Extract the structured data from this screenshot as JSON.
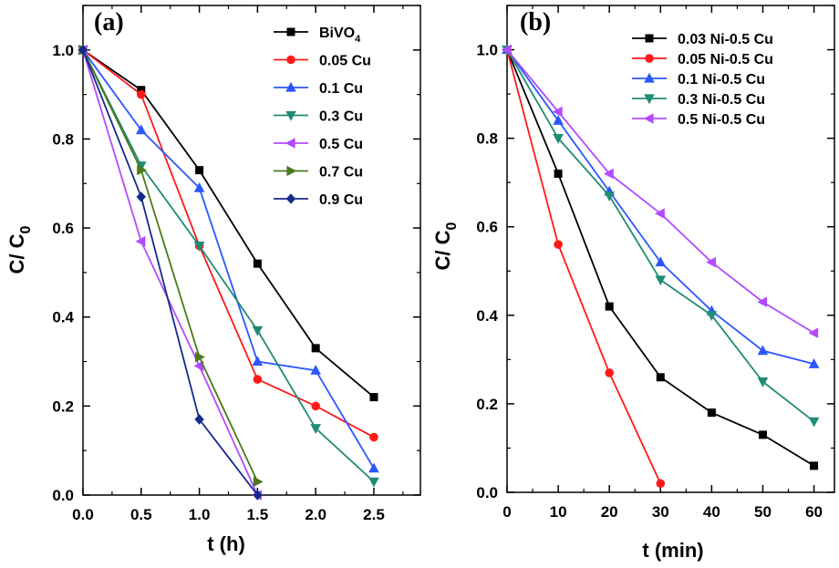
{
  "chart_data": [
    {
      "type": "line",
      "panel_label": "(a)",
      "xlabel": "t (h)",
      "ylabel": {
        "main": "C/ C",
        "sub": "0"
      },
      "xlim": [
        0,
        2.9
      ],
      "ylim": [
        0,
        1.1
      ],
      "xticks": [
        0.0,
        0.5,
        1.0,
        1.5,
        2.0,
        2.5
      ],
      "yticks": [
        0.0,
        0.2,
        0.4,
        0.6,
        0.8,
        1.0
      ],
      "xtick_labels": [
        "0.0",
        "0.5",
        "1.0",
        "1.5",
        "2.0",
        "2.5"
      ],
      "ytick_labels": [
        "0.0",
        "0.2",
        "0.4",
        "0.6",
        "0.8",
        "1.0"
      ],
      "legend_position": "top-right",
      "series": [
        {
          "name": "BiVO",
          "name_sub": "4",
          "color": "#000000",
          "marker": "square",
          "x": [
            0,
            0.5,
            1.0,
            1.5,
            2.0,
            2.5
          ],
          "y": [
            1.0,
            0.91,
            0.73,
            0.52,
            0.33,
            0.22
          ]
        },
        {
          "name": "0.05 Cu",
          "color": "#ff1a1a",
          "marker": "circle",
          "x": [
            0,
            0.5,
            1.0,
            1.5,
            2.0,
            2.5
          ],
          "y": [
            1.0,
            0.9,
            0.56,
            0.26,
            0.2,
            0.13
          ]
        },
        {
          "name": "0.1 Cu",
          "color": "#2b57ff",
          "marker": "triangle-up",
          "x": [
            0,
            0.5,
            1.0,
            1.5,
            2.0,
            2.5
          ],
          "y": [
            1.0,
            0.82,
            0.69,
            0.3,
            0.28,
            0.06
          ]
        },
        {
          "name": "0.3 Cu",
          "color": "#1f8c73",
          "marker": "triangle-down",
          "x": [
            0,
            0.5,
            1.0,
            1.5,
            2.0,
            2.5
          ],
          "y": [
            1.0,
            0.74,
            0.56,
            0.37,
            0.15,
            0.03
          ]
        },
        {
          "name": "0.5 Cu",
          "color": "#b24bff",
          "marker": "triangle-left",
          "x": [
            0,
            0.5,
            1.0,
            1.5
          ],
          "y": [
            1.0,
            0.57,
            0.29,
            0.0
          ]
        },
        {
          "name": "0.7 Cu",
          "color": "#4a7a1a",
          "marker": "triangle-right",
          "x": [
            0,
            0.5,
            1.0,
            1.5
          ],
          "y": [
            1.0,
            0.73,
            0.31,
            0.03
          ]
        },
        {
          "name": "0.9 Cu",
          "color": "#152a8c",
          "marker": "diamond",
          "x": [
            0,
            0.5,
            1.0,
            1.5
          ],
          "y": [
            1.0,
            0.67,
            0.17,
            0.0
          ]
        }
      ]
    },
    {
      "type": "line",
      "panel_label": "(b)",
      "xlabel": "t (min)",
      "ylabel": {
        "main": "C/ C",
        "sub": "0"
      },
      "xlim": [
        0,
        64
      ],
      "ylim": [
        0,
        1.1
      ],
      "xticks": [
        0,
        10,
        20,
        30,
        40,
        50,
        60
      ],
      "yticks": [
        0.0,
        0.2,
        0.4,
        0.6,
        0.8,
        1.0
      ],
      "xtick_labels": [
        "0",
        "10",
        "20",
        "30",
        "40",
        "50",
        "60"
      ],
      "ytick_labels": [
        "0.0",
        "0.2",
        "0.4",
        "0.6",
        "0.8",
        "1.0"
      ],
      "legend_position": "top-right",
      "series": [
        {
          "name": "0.03 Ni-0.5 Cu",
          "color": "#000000",
          "marker": "square",
          "x": [
            0,
            10,
            20,
            30,
            40,
            50,
            60
          ],
          "y": [
            1.0,
            0.72,
            0.42,
            0.26,
            0.18,
            0.13,
            0.06
          ]
        },
        {
          "name": "0.05 Ni-0.5 Cu",
          "color": "#ff1a1a",
          "marker": "circle",
          "x": [
            0,
            10,
            20,
            30
          ],
          "y": [
            1.0,
            0.56,
            0.27,
            0.02
          ]
        },
        {
          "name": "0.1 Ni-0.5 Cu",
          "color": "#2b57ff",
          "marker": "triangle-up",
          "x": [
            0,
            10,
            20,
            30,
            40,
            50,
            60
          ],
          "y": [
            1.0,
            0.84,
            0.68,
            0.52,
            0.41,
            0.32,
            0.29
          ]
        },
        {
          "name": "0.3 Ni-0.5 Cu",
          "color": "#1f8c73",
          "marker": "triangle-down",
          "x": [
            0,
            10,
            20,
            30,
            40,
            50,
            60
          ],
          "y": [
            1.0,
            0.8,
            0.67,
            0.48,
            0.4,
            0.25,
            0.16
          ]
        },
        {
          "name": "0.5 Ni-0.5 Cu",
          "color": "#b24bff",
          "marker": "triangle-left",
          "x": [
            0,
            10,
            20,
            30,
            40,
            50,
            60
          ],
          "y": [
            1.0,
            0.86,
            0.72,
            0.63,
            0.52,
            0.43,
            0.36
          ]
        }
      ]
    }
  ]
}
